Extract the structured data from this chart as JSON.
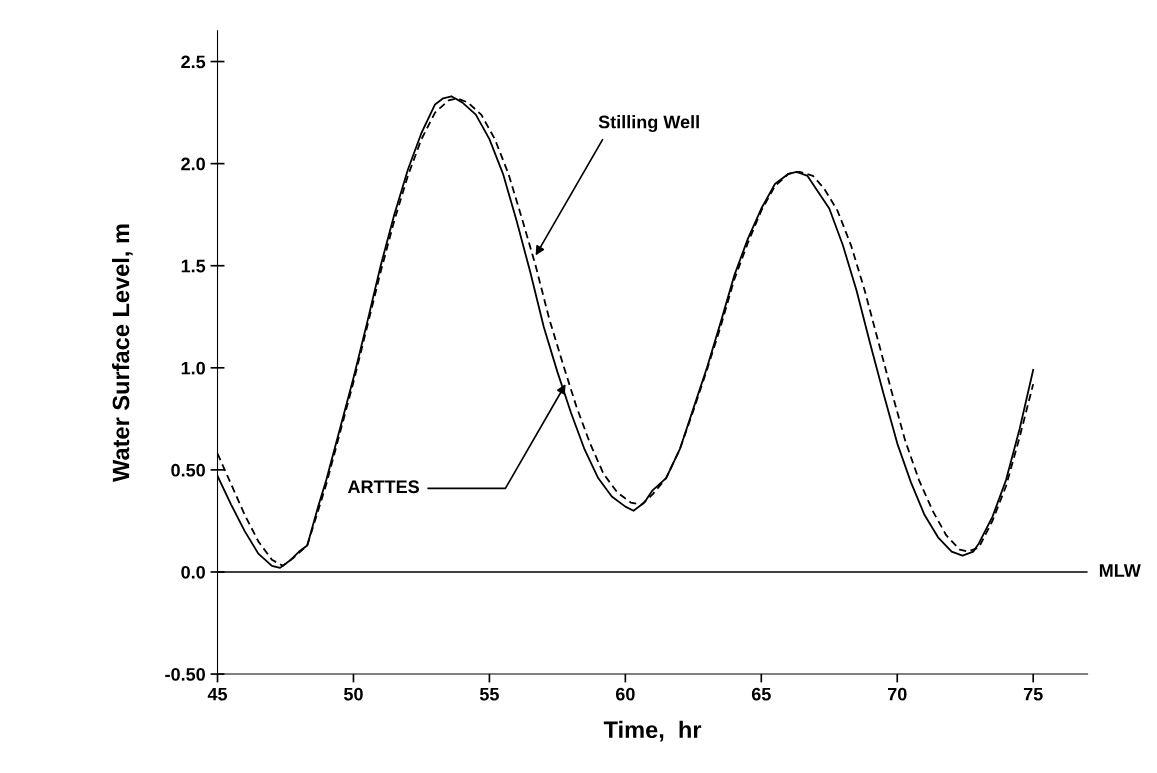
{
  "chart_data": {
    "type": "line",
    "xlabel": "Time,  hr",
    "ylabel": "Water Surface Level, m",
    "xlim": [
      45,
      77
    ],
    "xticks": [
      45,
      50,
      55,
      60,
      65,
      70,
      75
    ],
    "ylim": [
      -0.5,
      2.65
    ],
    "yticks": [
      {
        "value": -0.5,
        "label": "-0.50"
      },
      {
        "value": 0,
        "label": "0.0"
      },
      {
        "value": 0.5,
        "label": "0.50"
      },
      {
        "value": 1,
        "label": "1.0"
      },
      {
        "value": 1.5,
        "label": "1.5"
      },
      {
        "value": 2,
        "label": "2.0"
      },
      {
        "value": 2.5,
        "label": "2.5"
      }
    ],
    "grid": false,
    "legend": false,
    "marker": "none",
    "ref_lines": [
      {
        "axis": "y",
        "value": 0,
        "label": "MLW",
        "color": "#000000",
        "line_style": "solid"
      }
    ],
    "annotations": [
      {
        "text": "Stilling Well",
        "x": 56.7,
        "y": 1.55
      },
      {
        "text": "ARTTES",
        "x": 57.8,
        "y": 0.92
      }
    ],
    "series": [
      {
        "color": "#000000",
        "line_style": "solid",
        "x": [
          45,
          45.5,
          46,
          46.5,
          47,
          47.3,
          47.7,
          48,
          48.3,
          48.7,
          49,
          49.5,
          50,
          50.5,
          51,
          51.5,
          52,
          52.5,
          53,
          53.3,
          53.6,
          54,
          54.5,
          55,
          55.5,
          56,
          56.5,
          57,
          57.5,
          58,
          58.5,
          59,
          59.5,
          60,
          60.3,
          60.7,
          61,
          61.5,
          62,
          62.5,
          63,
          63.5,
          64,
          64.5,
          65,
          65.5,
          66,
          66.3,
          66.7,
          67,
          67.5,
          68,
          68.5,
          69,
          69.5,
          70,
          70.5,
          71,
          71.5,
          72,
          72.4,
          72.8,
          73,
          73.5,
          74,
          74.5,
          75
        ],
        "values": [
          0.47,
          0.33,
          0.2,
          0.09,
          0.03,
          0.02,
          0.06,
          0.1,
          0.13,
          0.32,
          0.45,
          0.7,
          0.95,
          1.22,
          1.5,
          1.75,
          1.97,
          2.15,
          2.29,
          2.32,
          2.33,
          2.3,
          2.24,
          2.12,
          1.95,
          1.72,
          1.47,
          1.2,
          0.98,
          0.78,
          0.6,
          0.46,
          0.37,
          0.32,
          0.3,
          0.34,
          0.4,
          0.46,
          0.6,
          0.8,
          1.0,
          1.22,
          1.45,
          1.63,
          1.78,
          1.9,
          1.95,
          1.96,
          1.94,
          1.88,
          1.78,
          1.6,
          1.38,
          1.12,
          0.87,
          0.63,
          0.44,
          0.28,
          0.17,
          0.1,
          0.08,
          0.1,
          0.14,
          0.27,
          0.45,
          0.7,
          0.99
        ]
      },
      {
        "color": "#000000",
        "line_style": "dashed",
        "x": [
          45,
          45.5,
          46,
          46.5,
          47,
          47.4,
          47.8,
          48.3,
          48.7,
          49,
          49.5,
          50,
          50.5,
          51,
          51.5,
          52,
          52.5,
          53,
          53.5,
          53.8,
          54.2,
          54.7,
          55.2,
          55.7,
          56.2,
          56.7,
          57.2,
          57.7,
          58.2,
          58.7,
          59.2,
          59.7,
          60.2,
          60.6,
          61,
          61.5,
          62,
          62.5,
          63,
          63.5,
          64,
          64.5,
          65,
          65.5,
          66,
          66.4,
          66.9,
          67.3,
          67.8,
          68.3,
          68.8,
          69.3,
          69.8,
          70.3,
          70.8,
          71.3,
          71.8,
          72.3,
          72.6,
          73,
          73.5,
          74,
          74.5,
          75
        ],
        "values": [
          0.58,
          0.43,
          0.28,
          0.15,
          0.06,
          0.03,
          0.07,
          0.13,
          0.3,
          0.43,
          0.68,
          0.93,
          1.2,
          1.47,
          1.72,
          1.94,
          2.12,
          2.25,
          2.31,
          2.32,
          2.3,
          2.24,
          2.12,
          1.95,
          1.73,
          1.5,
          1.24,
          1.02,
          0.81,
          0.63,
          0.48,
          0.39,
          0.34,
          0.33,
          0.38,
          0.46,
          0.6,
          0.79,
          0.99,
          1.2,
          1.43,
          1.61,
          1.77,
          1.89,
          1.95,
          1.96,
          1.94,
          1.88,
          1.77,
          1.6,
          1.38,
          1.13,
          0.88,
          0.64,
          0.45,
          0.3,
          0.18,
          0.11,
          0.1,
          0.12,
          0.25,
          0.42,
          0.66,
          0.92
        ]
      }
    ]
  }
}
